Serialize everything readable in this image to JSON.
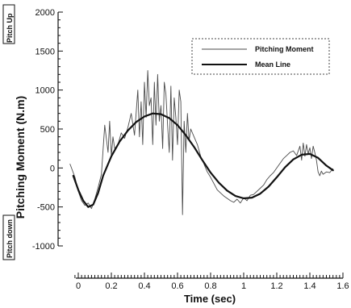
{
  "chart_data": {
    "type": "line",
    "xlabel": "Time (sec)",
    "ylabel": "Pitching Moment (N.m)",
    "xlim": [
      0,
      1.6
    ],
    "ylim": [
      -1000,
      2000
    ],
    "x_ticks": [
      "0",
      "0.2",
      "0.4",
      "0.6",
      "0.8",
      "1",
      "1.2",
      "1.4",
      "1.6"
    ],
    "y_ticks": [
      "2000",
      "1500",
      "1000",
      "500",
      "0",
      "-500",
      "-1000"
    ],
    "annotations": {
      "pitch_up": "Pitch Up",
      "pitch_down": "Pitch down"
    },
    "legend": {
      "placement": "top-right"
    },
    "series": [
      {
        "name": "Pitching Moment",
        "style": "thin-noisy",
        "color": "#4a4a4a",
        "x": [
          -0.05,
          -0.02,
          0.0,
          0.02,
          0.04,
          0.06,
          0.08,
          0.1,
          0.12,
          0.14,
          0.16,
          0.18,
          0.19,
          0.2,
          0.21,
          0.22,
          0.24,
          0.26,
          0.28,
          0.3,
          0.32,
          0.34,
          0.36,
          0.37,
          0.38,
          0.39,
          0.4,
          0.41,
          0.42,
          0.43,
          0.44,
          0.45,
          0.46,
          0.47,
          0.48,
          0.49,
          0.5,
          0.51,
          0.52,
          0.53,
          0.54,
          0.55,
          0.56,
          0.57,
          0.58,
          0.59,
          0.6,
          0.61,
          0.62,
          0.63,
          0.64,
          0.65,
          0.66,
          0.67,
          0.68,
          0.7,
          0.72,
          0.74,
          0.76,
          0.78,
          0.8,
          0.82,
          0.84,
          0.86,
          0.88,
          0.9,
          0.92,
          0.94,
          0.96,
          0.98,
          1.0,
          1.02,
          1.04,
          1.06,
          1.08,
          1.1,
          1.12,
          1.14,
          1.16,
          1.18,
          1.2,
          1.22,
          1.24,
          1.26,
          1.28,
          1.3,
          1.32,
          1.34,
          1.35,
          1.36,
          1.37,
          1.38,
          1.39,
          1.4,
          1.41,
          1.42,
          1.43,
          1.44,
          1.45,
          1.46,
          1.47,
          1.48,
          1.5,
          1.52,
          1.54
        ],
        "y": [
          50,
          -120,
          -300,
          -420,
          -480,
          -450,
          -520,
          -400,
          -250,
          -80,
          550,
          200,
          600,
          150,
          400,
          250,
          300,
          450,
          380,
          520,
          700,
          420,
          1000,
          400,
          850,
          300,
          1100,
          650,
          1250,
          800,
          900,
          300,
          1100,
          550,
          1200,
          600,
          800,
          250,
          1100,
          950,
          550,
          200,
          1050,
          100,
          900,
          650,
          300,
          1000,
          850,
          -600,
          600,
          200,
          700,
          350,
          500,
          400,
          300,
          150,
          50,
          -50,
          -120,
          -200,
          -280,
          -320,
          -360,
          -390,
          -420,
          -440,
          -400,
          -450,
          -380,
          -420,
          -350,
          -340,
          -300,
          -260,
          -220,
          -150,
          -100,
          -60,
          0,
          60,
          120,
          160,
          200,
          220,
          160,
          280,
          100,
          320,
          150,
          300,
          180,
          260,
          120,
          280,
          200,
          100,
          -50,
          -100,
          -40,
          -80,
          -50,
          -60,
          -10
        ]
      },
      {
        "name": "Mean Line",
        "style": "thick-smooth",
        "color": "#111111",
        "x": [
          -0.03,
          0.0,
          0.03,
          0.06,
          0.09,
          0.12,
          0.15,
          0.2,
          0.25,
          0.3,
          0.35,
          0.4,
          0.45,
          0.5,
          0.55,
          0.6,
          0.65,
          0.7,
          0.75,
          0.8,
          0.85,
          0.9,
          0.95,
          1.0,
          1.05,
          1.1,
          1.15,
          1.2,
          1.25,
          1.3,
          1.35,
          1.4,
          1.45,
          1.5,
          1.54
        ],
        "y": [
          -100,
          -280,
          -420,
          -500,
          -470,
          -320,
          -100,
          150,
          340,
          480,
          590,
          660,
          700,
          690,
          640,
          550,
          420,
          270,
          100,
          -60,
          -190,
          -290,
          -360,
          -390,
          -380,
          -330,
          -240,
          -120,
          10,
          110,
          170,
          180,
          130,
          30,
          -30
        ]
      }
    ]
  }
}
